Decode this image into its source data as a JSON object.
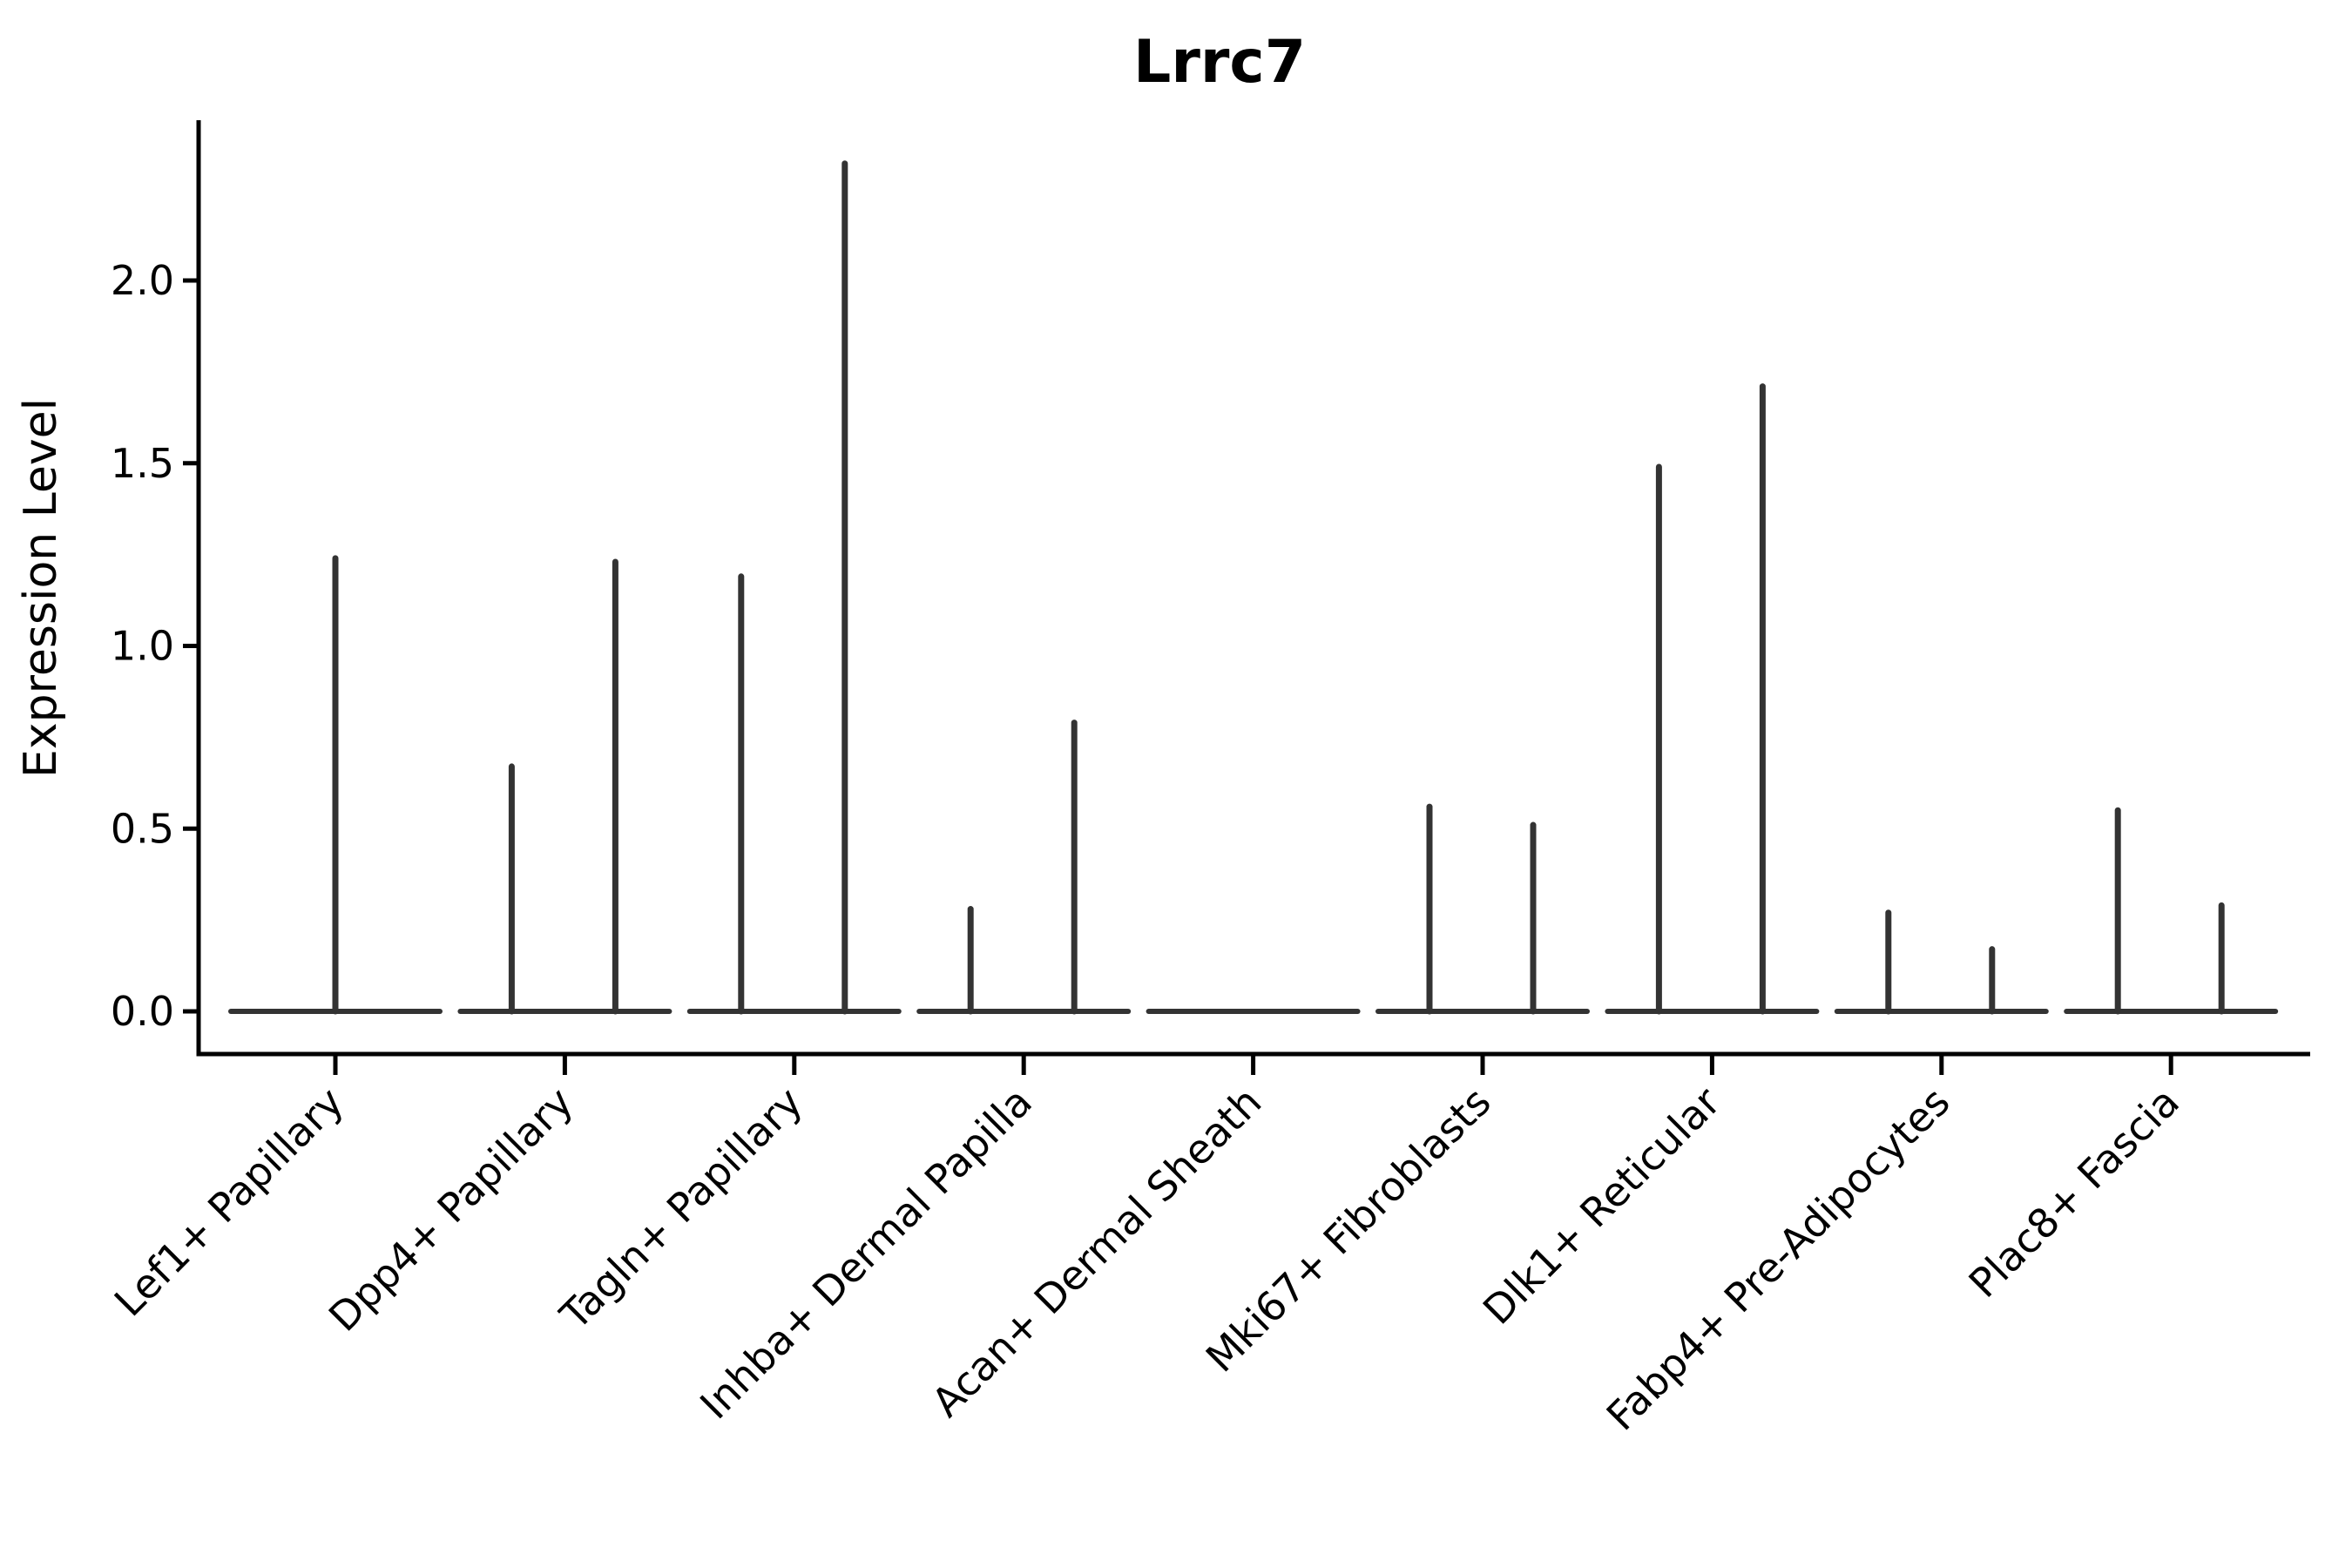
{
  "chart_data": {
    "type": "violin",
    "title": "Lrrc7",
    "ylabel": "Expression Level",
    "xlabel": "",
    "yticks": [
      0.0,
      0.5,
      1.0,
      1.5,
      2.0
    ],
    "ylim": [
      -0.12,
      2.43
    ],
    "grid": false,
    "legend": "none",
    "background": "#ffffff",
    "axis_color": "#000000",
    "violin_color": "#333333",
    "categories": [
      "Lef1+ Papillary",
      "Dpp4+ Papillary",
      "Tagln+ Papillary",
      "Inhba+ Dermal Papilla",
      "Acan+ Dermal Sheath",
      "Mki67+ Fibroblasts",
      "Dlk1+ Reticular",
      "Fabp4+ Pre-Adipocytes",
      "Plac8+ Fascia"
    ],
    "violins": [
      {
        "category": "Lef1+ Papillary",
        "baseline_value": 0,
        "spikes": [
          {
            "pos": "center",
            "value": 1.24
          }
        ]
      },
      {
        "category": "Dpp4+ Papillary",
        "baseline_value": 0,
        "spikes": [
          {
            "pos": "left",
            "value": 0.67
          },
          {
            "pos": "right",
            "value": 1.23
          }
        ]
      },
      {
        "category": "Tagln+ Papillary",
        "baseline_value": 0,
        "spikes": [
          {
            "pos": "left",
            "value": 1.19
          },
          {
            "pos": "right",
            "value": 2.32
          }
        ]
      },
      {
        "category": "Inhba+ Dermal Papilla",
        "baseline_value": 0,
        "spikes": [
          {
            "pos": "left",
            "value": 0.28
          },
          {
            "pos": "right",
            "value": 0.79
          }
        ]
      },
      {
        "category": "Acan+ Dermal Sheath",
        "baseline_value": 0,
        "spikes": []
      },
      {
        "category": "Mki67+ Fibroblasts",
        "baseline_value": 0,
        "spikes": [
          {
            "pos": "left",
            "value": 0.56
          },
          {
            "pos": "right",
            "value": 0.51
          }
        ]
      },
      {
        "category": "Dlk1+ Reticular",
        "baseline_value": 0,
        "spikes": [
          {
            "pos": "left",
            "value": 1.49
          },
          {
            "pos": "right",
            "value": 1.71
          }
        ]
      },
      {
        "category": "Fabp4+ Pre-Adipocytes",
        "baseline_value": 0,
        "spikes": [
          {
            "pos": "left",
            "value": 0.27
          },
          {
            "pos": "right",
            "value": 0.17
          }
        ]
      },
      {
        "category": "Plac8+ Fascia",
        "baseline_value": 0,
        "spikes": [
          {
            "pos": "left",
            "value": 0.55
          },
          {
            "pos": "right",
            "value": 0.29
          }
        ]
      }
    ]
  }
}
